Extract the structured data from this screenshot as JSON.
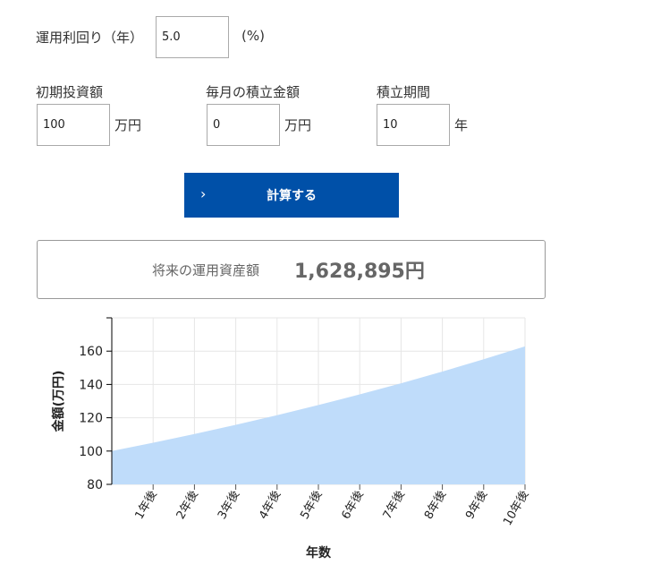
{
  "form": {
    "rate_label": "運用利回り（年）",
    "rate_value": "5.0",
    "rate_unit": "(%)",
    "initial_label": "初期投資額",
    "initial_value": "100",
    "initial_unit": "万円",
    "monthly_label": "毎月の積立金額",
    "monthly_value": "0",
    "monthly_unit": "万円",
    "period_label": "積立期間",
    "period_value": "10",
    "period_unit": "年",
    "calc_button": "計算する",
    "calc_icon": "chevron-right-icon"
  },
  "result": {
    "label": "将来の運用資産額",
    "value": "1,628,895円"
  },
  "chart_data": {
    "type": "area",
    "xlabel": "年数",
    "ylabel": "金額(万円)",
    "x": [
      0,
      1,
      2,
      3,
      4,
      5,
      6,
      7,
      8,
      9,
      10
    ],
    "tick_labels": [
      "1年後",
      "2年後",
      "3年後",
      "4年後",
      "5年後",
      "6年後",
      "7年後",
      "8年後",
      "9年後",
      "10年後"
    ],
    "values": [
      100,
      105,
      110.25,
      115.76,
      121.55,
      127.63,
      134.01,
      140.71,
      147.75,
      155.13,
      162.89
    ],
    "yticks": [
      80,
      100,
      120,
      140,
      160
    ],
    "ylim": [
      80,
      180
    ],
    "xlim": [
      0,
      10
    ],
    "grid": true,
    "fill_color": "#bfdcfa"
  }
}
